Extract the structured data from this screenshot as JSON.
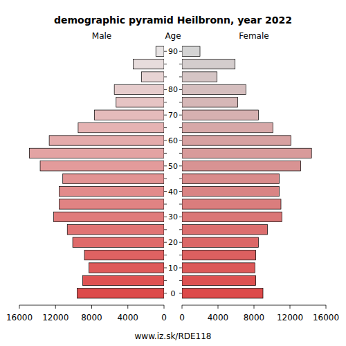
{
  "chart_data": {
    "type": "bar",
    "orientation": "horizontal",
    "title": "demographic pyramid Heilbronn, year 2022",
    "y_label": "Age",
    "caption": "www.iz.sk/RDE118",
    "categories": [
      "0",
      null,
      "10",
      null,
      "20",
      null,
      "30",
      null,
      "40",
      null,
      "50",
      null,
      "60",
      null,
      "70",
      null,
      "80",
      null,
      null,
      "90"
    ],
    "series": [
      {
        "name": "Male",
        "values": [
          9600,
          9000,
          8300,
          8800,
          10100,
          10700,
          12200,
          11600,
          11600,
          11200,
          13700,
          14900,
          12700,
          9500,
          7700,
          5300,
          5500,
          2500,
          3400,
          900
        ],
        "colors": [
          "#dd4a4a",
          "#de5252",
          "#de5a5a",
          "#df6262",
          "#df6a6a",
          "#e07373",
          "#e07b7b",
          "#e18383",
          "#e28b8b",
          "#e29393",
          "#e39b9b",
          "#e3a3a3",
          "#e4abab",
          "#e5b3b3",
          "#e5bbbb",
          "#e6c4c4",
          "#e6cccc",
          "#e7d4d4",
          "#e7dcdc",
          "#e8e4e4"
        ]
      },
      {
        "name": "Female",
        "values": [
          9000,
          8200,
          8100,
          8200,
          8500,
          9500,
          11100,
          11000,
          10800,
          10800,
          13200,
          14400,
          12100,
          10100,
          8500,
          6200,
          7100,
          3900,
          5900,
          2000
        ],
        "colors": [
          "#dd4a4a",
          "#dd5151",
          "#dc5959",
          "#dc6060",
          "#db6767",
          "#db6e6e",
          "#da7676",
          "#da7d7d",
          "#d98484",
          "#d98b8b",
          "#d89393",
          "#d89a9a",
          "#d7a1a1",
          "#d7a8a8",
          "#d6b0b0",
          "#d6b7b7",
          "#d5bebe",
          "#d5c5c5",
          "#d4cdcd",
          "#d4d4d4"
        ]
      }
    ],
    "xlim": [
      0,
      16000
    ],
    "xticks": [
      0,
      4000,
      8000,
      12000,
      16000
    ]
  }
}
